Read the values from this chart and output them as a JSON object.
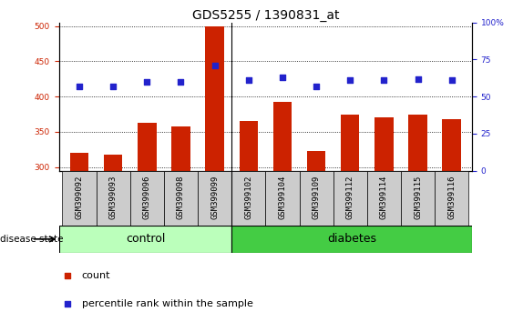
{
  "title": "GDS5255 / 1390831_at",
  "samples": [
    "GSM399092",
    "GSM399093",
    "GSM399096",
    "GSM399098",
    "GSM399099",
    "GSM399102",
    "GSM399104",
    "GSM399109",
    "GSM399112",
    "GSM399114",
    "GSM399115",
    "GSM399116"
  ],
  "counts": [
    320,
    318,
    363,
    358,
    500,
    365,
    392,
    323,
    375,
    370,
    375,
    368
  ],
  "percentile_ranks": [
    57,
    57,
    60,
    60,
    71,
    61,
    63,
    57,
    61,
    61,
    62,
    61
  ],
  "n_control": 5,
  "n_diabetes": 7,
  "ylim_left": [
    295,
    505
  ],
  "ylim_right": [
    0,
    100
  ],
  "yticks_left": [
    300,
    350,
    400,
    450,
    500
  ],
  "yticks_right": [
    0,
    25,
    50,
    75,
    100
  ],
  "bar_color": "#cc2200",
  "dot_color": "#2222cc",
  "control_color": "#bbffbb",
  "diabetes_color": "#44cc44",
  "tick_bg_color": "#cccccc",
  "title_fontsize": 10,
  "tick_fontsize": 6.5,
  "legend_fontsize": 8,
  "axis_label_color_left": "#cc2200",
  "axis_label_color_right": "#2222cc"
}
